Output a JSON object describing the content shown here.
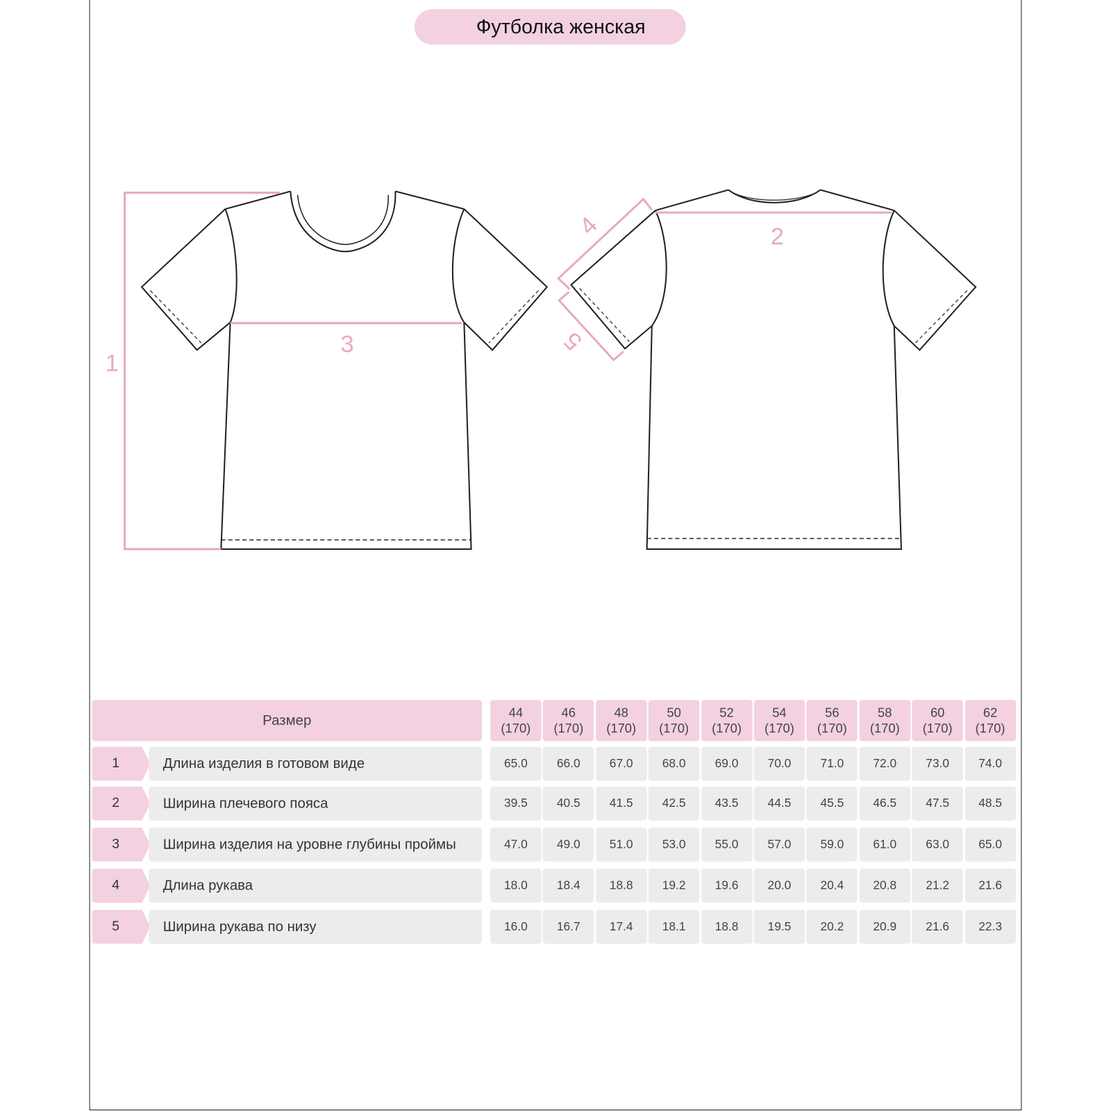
{
  "title": "Футболка женская",
  "diagram_labels": {
    "length": "1",
    "shoulder_width": "2",
    "chest_width": "3",
    "sleeve_length": "4",
    "sleeve_width": "5"
  },
  "colors": {
    "accent": "#f3d1e1",
    "measure_line": "#e8a9c6",
    "cell_grey": "#ececec"
  },
  "table": {
    "size_header": "Размер",
    "sizes": [
      {
        "size": "44",
        "height": "(170)"
      },
      {
        "size": "46",
        "height": "(170)"
      },
      {
        "size": "48",
        "height": "(170)"
      },
      {
        "size": "50",
        "height": "(170)"
      },
      {
        "size": "52",
        "height": "(170)"
      },
      {
        "size": "54",
        "height": "(170)"
      },
      {
        "size": "56",
        "height": "(170)"
      },
      {
        "size": "58",
        "height": "(170)"
      },
      {
        "size": "60",
        "height": "(170)"
      },
      {
        "size": "62",
        "height": "(170)"
      }
    ],
    "rows": [
      {
        "num": "1",
        "label": "Длина изделия в готовом виде",
        "values": [
          "65.0",
          "66.0",
          "67.0",
          "68.0",
          "69.0",
          "70.0",
          "71.0",
          "72.0",
          "73.0",
          "74.0"
        ]
      },
      {
        "num": "2",
        "label": "Ширина плечевого пояса",
        "values": [
          "39.5",
          "40.5",
          "41.5",
          "42.5",
          "43.5",
          "44.5",
          "45.5",
          "46.5",
          "47.5",
          "48.5"
        ]
      },
      {
        "num": "3",
        "label": "Ширина изделия на уровне глубины проймы",
        "values": [
          "47.0",
          "49.0",
          "51.0",
          "53.0",
          "55.0",
          "57.0",
          "59.0",
          "61.0",
          "63.0",
          "65.0"
        ]
      },
      {
        "num": "4",
        "label": "Длина рукава",
        "values": [
          "18.0",
          "18.4",
          "18.8",
          "19.2",
          "19.6",
          "20.0",
          "20.4",
          "20.8",
          "21.2",
          "21.6"
        ]
      },
      {
        "num": "5",
        "label": "Ширина рукава по низу",
        "values": [
          "16.0",
          "16.7",
          "17.4",
          "18.1",
          "18.8",
          "19.5",
          "20.2",
          "20.9",
          "21.6",
          "22.3"
        ]
      }
    ]
  }
}
